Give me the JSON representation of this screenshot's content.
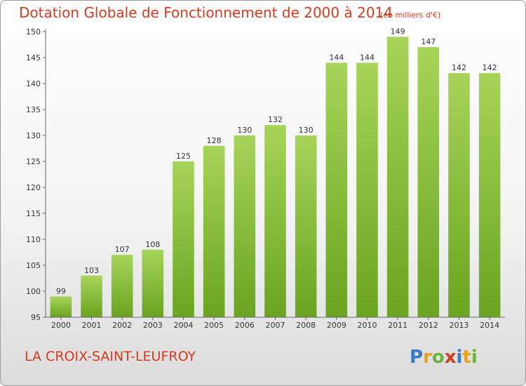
{
  "title": "Dotation Globale de Fonctionnement de 2000 à 2014",
  "subtitle": "(en milliers d'€)",
  "commune": "LA CROIX-SAINT-LEUFROY",
  "logo_text": "Proxiti",
  "colors": {
    "title": "#d93a1f",
    "bar_light": "#a6d45a",
    "bar_dark": "#6aa420"
  },
  "chart_data": {
    "type": "bar",
    "title": "Dotation Globale de Fonctionnement de 2000 à 2014",
    "subtitle": "(en milliers d'€)",
    "categories": [
      "2000",
      "2001",
      "2002",
      "2003",
      "2004",
      "2005",
      "2006",
      "2007",
      "2008",
      "2009",
      "2010",
      "2011",
      "2012",
      "2013",
      "2014"
    ],
    "values": [
      99,
      103,
      107,
      108,
      125,
      128,
      130,
      132,
      130,
      144,
      144,
      149,
      147,
      142,
      142
    ],
    "ylim": [
      95,
      150
    ],
    "yticks": [
      95,
      100,
      105,
      110,
      115,
      120,
      125,
      130,
      135,
      140,
      145,
      150
    ],
    "grid": false,
    "data_labels": true
  }
}
